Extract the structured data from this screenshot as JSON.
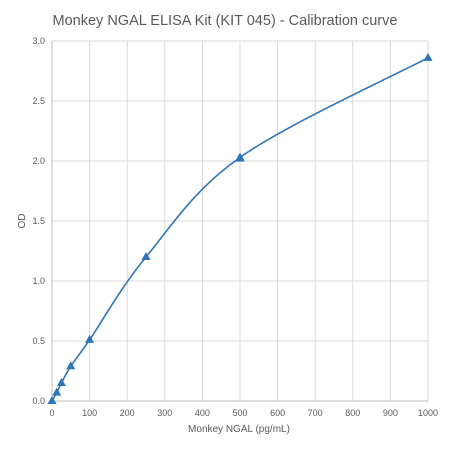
{
  "chart_data": {
    "type": "scatter",
    "title": "Monkey NGAL ELISA Kit (KIT 045) - Calibration curve",
    "xlabel": "Monkey NGAL (pg/mL)",
    "ylabel": "OD",
    "xlim": [
      0,
      1000
    ],
    "ylim": [
      0,
      3.0
    ],
    "x_ticks": [
      0,
      100,
      200,
      300,
      400,
      500,
      600,
      700,
      800,
      900,
      1000
    ],
    "y_ticks": [
      0.0,
      0.5,
      1.0,
      1.5,
      2.0,
      2.5,
      3.0
    ],
    "y_tick_labels": [
      "0.0",
      "0.5",
      "1.0",
      "1.5",
      "2.0",
      "2.5",
      "3.0"
    ],
    "grid": true,
    "series": [
      {
        "marker": "triangle",
        "color": "#2e75b6",
        "points": [
          {
            "x": 0,
            "y": 0.0
          },
          {
            "x": 12.5,
            "y": 0.07
          },
          {
            "x": 25,
            "y": 0.15
          },
          {
            "x": 50,
            "y": 0.29
          },
          {
            "x": 100,
            "y": 0.51
          },
          {
            "x": 250,
            "y": 1.2
          },
          {
            "x": 500,
            "y": 2.04
          },
          {
            "x": 500,
            "y": 2.02
          },
          {
            "x": 1000,
            "y": 2.86
          }
        ],
        "smooth_line": true
      }
    ]
  }
}
